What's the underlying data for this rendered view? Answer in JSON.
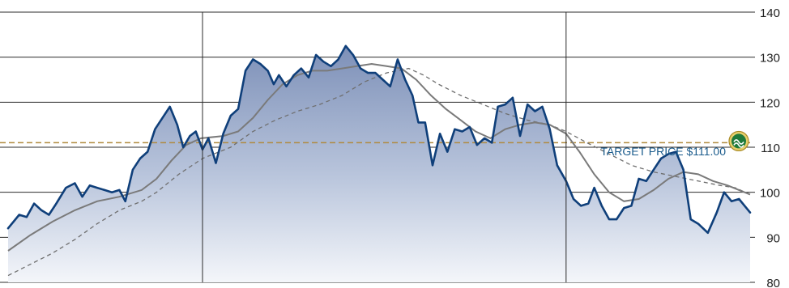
{
  "chart_data": {
    "type": "line",
    "title": "",
    "xlabel": "",
    "ylabel": "",
    "ylim": [
      80,
      140
    ],
    "yticks": [
      80,
      90,
      100,
      110,
      120,
      130,
      140
    ],
    "x_range": [
      0,
      1
    ],
    "vertical_dividers_x": [
      0.262,
      0.752
    ],
    "grid": "horizontal",
    "target": {
      "value": 111,
      "label": "TARGET PRICE $111.00"
    },
    "series": [
      {
        "role": "price",
        "style": "filled-area-dark-blue",
        "points": [
          [
            0.0,
            92.0
          ],
          [
            0.015,
            95.0
          ],
          [
            0.025,
            94.5
          ],
          [
            0.035,
            97.5
          ],
          [
            0.045,
            96.0
          ],
          [
            0.055,
            95.0
          ],
          [
            0.065,
            97.5
          ],
          [
            0.078,
            101.0
          ],
          [
            0.09,
            102.0
          ],
          [
            0.1,
            99.0
          ],
          [
            0.11,
            101.5
          ],
          [
            0.12,
            101.0
          ],
          [
            0.13,
            100.5
          ],
          [
            0.14,
            100.0
          ],
          [
            0.15,
            100.5
          ],
          [
            0.158,
            98.0
          ],
          [
            0.168,
            105.0
          ],
          [
            0.178,
            107.5
          ],
          [
            0.188,
            109.0
          ],
          [
            0.198,
            114.0
          ],
          [
            0.208,
            116.5
          ],
          [
            0.218,
            119.0
          ],
          [
            0.228,
            115.0
          ],
          [
            0.236,
            110.0
          ],
          [
            0.245,
            112.5
          ],
          [
            0.253,
            113.5
          ],
          [
            0.262,
            109.5
          ],
          [
            0.27,
            112.0
          ],
          [
            0.28,
            106.5
          ],
          [
            0.29,
            113.0
          ],
          [
            0.3,
            117.0
          ],
          [
            0.31,
            118.5
          ],
          [
            0.32,
            127.0
          ],
          [
            0.33,
            129.5
          ],
          [
            0.34,
            128.5
          ],
          [
            0.35,
            127.0
          ],
          [
            0.358,
            124.0
          ],
          [
            0.365,
            126.0
          ],
          [
            0.375,
            123.5
          ],
          [
            0.385,
            126.0
          ],
          [
            0.395,
            127.5
          ],
          [
            0.405,
            125.5
          ],
          [
            0.415,
            130.5
          ],
          [
            0.425,
            129.0
          ],
          [
            0.435,
            128.0
          ],
          [
            0.445,
            129.5
          ],
          [
            0.455,
            132.5
          ],
          [
            0.465,
            130.5
          ],
          [
            0.475,
            127.5
          ],
          [
            0.485,
            126.5
          ],
          [
            0.495,
            126.5
          ],
          [
            0.505,
            125.0
          ],
          [
            0.515,
            123.5
          ],
          [
            0.525,
            129.5
          ],
          [
            0.535,
            125.0
          ],
          [
            0.545,
            121.5
          ],
          [
            0.553,
            115.5
          ],
          [
            0.562,
            115.5
          ],
          [
            0.572,
            106.0
          ],
          [
            0.582,
            113.0
          ],
          [
            0.592,
            109.0
          ],
          [
            0.602,
            114.0
          ],
          [
            0.612,
            113.5
          ],
          [
            0.622,
            114.5
          ],
          [
            0.632,
            110.5
          ],
          [
            0.642,
            112.0
          ],
          [
            0.652,
            111.0
          ],
          [
            0.66,
            119.0
          ],
          [
            0.67,
            119.5
          ],
          [
            0.68,
            121.0
          ],
          [
            0.69,
            112.5
          ],
          [
            0.7,
            119.5
          ],
          [
            0.71,
            118.0
          ],
          [
            0.72,
            119.0
          ],
          [
            0.73,
            114.0
          ],
          [
            0.74,
            106.0
          ],
          [
            0.752,
            102.5
          ],
          [
            0.762,
            98.5
          ],
          [
            0.772,
            97.0
          ],
          [
            0.782,
            97.5
          ],
          [
            0.79,
            101.0
          ],
          [
            0.8,
            97.0
          ],
          [
            0.81,
            94.0
          ],
          [
            0.82,
            94.0
          ],
          [
            0.83,
            96.5
          ],
          [
            0.84,
            97.0
          ],
          [
            0.85,
            103.0
          ],
          [
            0.86,
            102.5
          ],
          [
            0.87,
            105.0
          ],
          [
            0.88,
            107.5
          ],
          [
            0.89,
            108.5
          ],
          [
            0.9,
            109.0
          ],
          [
            0.91,
            105.0
          ],
          [
            0.92,
            94.0
          ],
          [
            0.93,
            93.0
          ],
          [
            0.943,
            91.0
          ],
          [
            0.955,
            95.5
          ],
          [
            0.965,
            100.0
          ],
          [
            0.975,
            98.0
          ],
          [
            0.985,
            98.5
          ],
          [
            1.0,
            95.5
          ]
        ]
      },
      {
        "role": "moving-average-solid",
        "style": "solid-gray",
        "points": [
          [
            0.0,
            87.0
          ],
          [
            0.03,
            90.5
          ],
          [
            0.06,
            93.5
          ],
          [
            0.09,
            96.0
          ],
          [
            0.12,
            98.0
          ],
          [
            0.15,
            99.0
          ],
          [
            0.18,
            100.5
          ],
          [
            0.2,
            103.0
          ],
          [
            0.22,
            107.0
          ],
          [
            0.24,
            110.5
          ],
          [
            0.26,
            112.0
          ],
          [
            0.29,
            112.5
          ],
          [
            0.31,
            113.5
          ],
          [
            0.33,
            116.5
          ],
          [
            0.35,
            120.5
          ],
          [
            0.37,
            124.0
          ],
          [
            0.39,
            126.0
          ],
          [
            0.41,
            127.0
          ],
          [
            0.43,
            127.0
          ],
          [
            0.45,
            127.5
          ],
          [
            0.47,
            128.0
          ],
          [
            0.49,
            128.5
          ],
          [
            0.51,
            128.0
          ],
          [
            0.53,
            127.5
          ],
          [
            0.55,
            125.0
          ],
          [
            0.57,
            121.5
          ],
          [
            0.59,
            118.5
          ],
          [
            0.61,
            116.0
          ],
          [
            0.63,
            113.5
          ],
          [
            0.65,
            112.0
          ],
          [
            0.67,
            114.0
          ],
          [
            0.69,
            115.0
          ],
          [
            0.71,
            115.5
          ],
          [
            0.73,
            115.0
          ],
          [
            0.752,
            113.0
          ],
          [
            0.77,
            109.0
          ],
          [
            0.79,
            104.0
          ],
          [
            0.81,
            100.0
          ],
          [
            0.83,
            98.0
          ],
          [
            0.85,
            98.5
          ],
          [
            0.87,
            100.5
          ],
          [
            0.89,
            103.0
          ],
          [
            0.91,
            104.5
          ],
          [
            0.93,
            104.0
          ],
          [
            0.95,
            102.5
          ],
          [
            0.97,
            101.5
          ],
          [
            0.985,
            100.5
          ],
          [
            1.0,
            99.5
          ]
        ]
      },
      {
        "role": "moving-average-dashed",
        "style": "dashed-gray",
        "points": [
          [
            0.0,
            81.5
          ],
          [
            0.03,
            84.0
          ],
          [
            0.06,
            86.5
          ],
          [
            0.09,
            89.5
          ],
          [
            0.12,
            93.0
          ],
          [
            0.15,
            96.0
          ],
          [
            0.18,
            98.0
          ],
          [
            0.2,
            100.0
          ],
          [
            0.23,
            104.0
          ],
          [
            0.262,
            107.5
          ],
          [
            0.3,
            110.0
          ],
          [
            0.33,
            113.5
          ],
          [
            0.36,
            116.0
          ],
          [
            0.39,
            118.0
          ],
          [
            0.42,
            119.5
          ],
          [
            0.45,
            121.5
          ],
          [
            0.48,
            124.5
          ],
          [
            0.51,
            126.5
          ],
          [
            0.54,
            127.5
          ],
          [
            0.56,
            126.0
          ],
          [
            0.58,
            124.0
          ],
          [
            0.61,
            121.5
          ],
          [
            0.64,
            119.5
          ],
          [
            0.67,
            117.5
          ],
          [
            0.7,
            116.0
          ],
          [
            0.73,
            115.0
          ],
          [
            0.752,
            113.5
          ],
          [
            0.78,
            111.0
          ],
          [
            0.81,
            108.5
          ],
          [
            0.84,
            106.0
          ],
          [
            0.87,
            104.5
          ],
          [
            0.9,
            103.5
          ],
          [
            0.93,
            102.5
          ],
          [
            0.96,
            101.5
          ],
          [
            0.98,
            101.0
          ],
          [
            1.0,
            99.5
          ]
        ]
      }
    ]
  }
}
